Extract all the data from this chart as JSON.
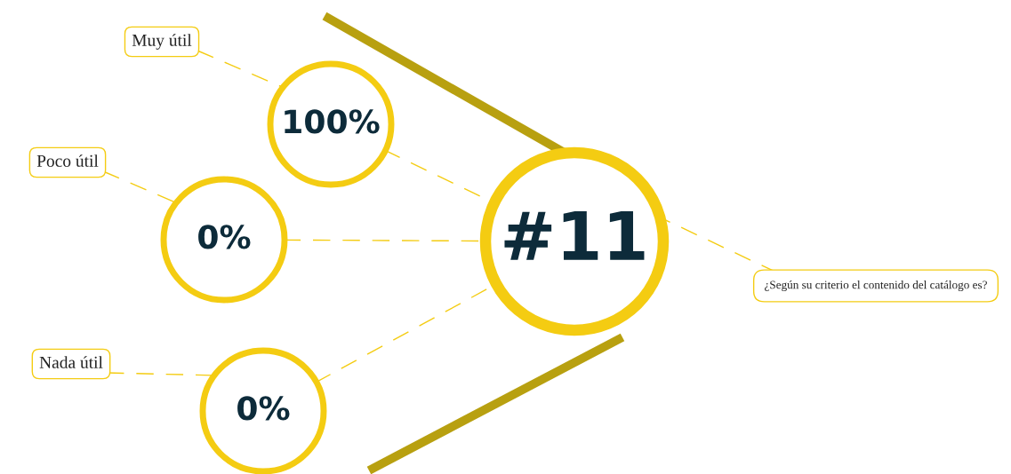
{
  "chart_data": {
    "type": "other",
    "title": "#11",
    "annotations": [
      "¿Según su criterio el contenido del catálogo es?"
    ],
    "categories": [
      "Muy útil",
      "Poco útil",
      "Nada útil"
    ],
    "values": [
      100,
      0,
      0
    ],
    "value_labels": [
      "100%",
      "0%",
      "0%"
    ],
    "color": "#f4cc12"
  }
}
